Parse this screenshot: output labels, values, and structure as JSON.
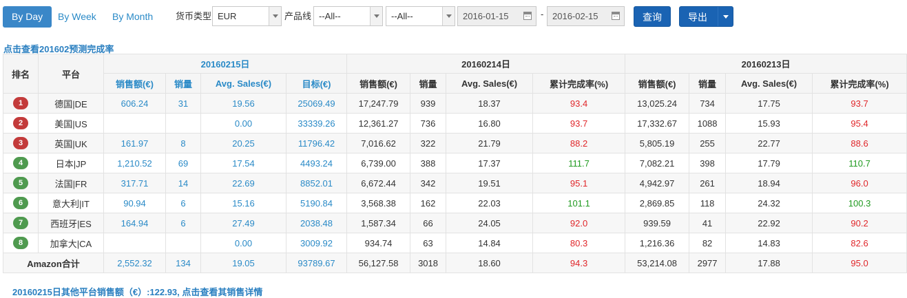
{
  "toolbar": {
    "tabs": [
      {
        "label": "By Day",
        "active": true
      },
      {
        "label": "By Week",
        "active": false
      },
      {
        "label": "By Month",
        "active": false
      }
    ],
    "currency_label": "货币类型",
    "currency_value": "EUR",
    "product_line_label": "产品线",
    "product_line_value": "--All--",
    "second_filter_value": "--All--",
    "start_date": "2016-01-15",
    "date_separator": "-",
    "end_date": "2016-02-15",
    "query_label": "查询",
    "export_label": "导出"
  },
  "forecast_link": "点击查看201602预测完成率",
  "table": {
    "rank_header": "排名",
    "platform_header": "平台",
    "groups": [
      "20160215日",
      "20160214日",
      "20160213日"
    ],
    "group1_cols": [
      "销售额(€)",
      "销量",
      "Avg. Sales(€)",
      "目标(€)"
    ],
    "group2_cols": [
      "销售额(€)",
      "销量",
      "Avg. Sales(€)",
      "累计完成率(%)"
    ],
    "group3_cols": [
      "销售额(€)",
      "销量",
      "Avg. Sales(€)",
      "累计完成率(%)"
    ],
    "rows": [
      {
        "rank": "1",
        "rank_color": "red",
        "platform": "德国|DE",
        "d1": [
          "606.24",
          "31",
          "19.56",
          "25069.49"
        ],
        "d2": [
          "17,247.79",
          "939",
          "18.37",
          "93.4"
        ],
        "d2_status": "red",
        "d3": [
          "13,025.24",
          "734",
          "17.75",
          "93.7"
        ],
        "d3_status": "red"
      },
      {
        "rank": "2",
        "rank_color": "red",
        "platform": "美国|US",
        "d1": [
          "",
          "",
          "0.00",
          "33339.26"
        ],
        "d2": [
          "12,361.27",
          "736",
          "16.80",
          "93.7"
        ],
        "d2_status": "red",
        "d3": [
          "17,332.67",
          "1088",
          "15.93",
          "95.4"
        ],
        "d3_status": "red"
      },
      {
        "rank": "3",
        "rank_color": "red",
        "platform": "英国|UK",
        "d1": [
          "161.97",
          "8",
          "20.25",
          "11796.42"
        ],
        "d2": [
          "7,016.62",
          "322",
          "21.79",
          "88.2"
        ],
        "d2_status": "red",
        "d3": [
          "5,805.19",
          "255",
          "22.77",
          "88.6"
        ],
        "d3_status": "red"
      },
      {
        "rank": "4",
        "rank_color": "green",
        "platform": "日本|JP",
        "d1": [
          "1,210.52",
          "69",
          "17.54",
          "4493.24"
        ],
        "d2": [
          "6,739.00",
          "388",
          "17.37",
          "111.7"
        ],
        "d2_status": "green",
        "d3": [
          "7,082.21",
          "398",
          "17.79",
          "110.7"
        ],
        "d3_status": "green"
      },
      {
        "rank": "5",
        "rank_color": "green",
        "platform": "法国|FR",
        "d1": [
          "317.71",
          "14",
          "22.69",
          "8852.01"
        ],
        "d2": [
          "6,672.44",
          "342",
          "19.51",
          "95.1"
        ],
        "d2_status": "red",
        "d3": [
          "4,942.97",
          "261",
          "18.94",
          "96.0"
        ],
        "d3_status": "red"
      },
      {
        "rank": "6",
        "rank_color": "green",
        "platform": "意大利|IT",
        "d1": [
          "90.94",
          "6",
          "15.16",
          "5190.84"
        ],
        "d2": [
          "3,568.38",
          "162",
          "22.03",
          "101.1"
        ],
        "d2_status": "green",
        "d3": [
          "2,869.85",
          "118",
          "24.32",
          "100.3"
        ],
        "d3_status": "green"
      },
      {
        "rank": "7",
        "rank_color": "green",
        "platform": "西班牙|ES",
        "d1": [
          "164.94",
          "6",
          "27.49",
          "2038.48"
        ],
        "d2": [
          "1,587.34",
          "66",
          "24.05",
          "92.0"
        ],
        "d2_status": "red",
        "d3": [
          "939.59",
          "41",
          "22.92",
          "90.2"
        ],
        "d3_status": "red"
      },
      {
        "rank": "8",
        "rank_color": "green",
        "platform": "加拿大|CA",
        "d1": [
          "",
          "",
          "0.00",
          "3009.92"
        ],
        "d2": [
          "934.74",
          "63",
          "14.84",
          "80.3"
        ],
        "d2_status": "red",
        "d3": [
          "1,216.36",
          "82",
          "14.83",
          "82.6"
        ],
        "d3_status": "red"
      }
    ],
    "total": {
      "label": "Amazon合计",
      "d1": [
        "2,552.32",
        "134",
        "19.05",
        "93789.67"
      ],
      "d2": [
        "56,127.58",
        "3018",
        "18.60",
        "94.3"
      ],
      "d2_status": "red",
      "d3": [
        "53,214.08",
        "2977",
        "17.88",
        "95.0"
      ],
      "d3_status": "red"
    }
  },
  "other_platforms_link": "20160215日其他平台销售额（€）:122.93, 点击查看其销售详情",
  "colors": {
    "accent": "#2a8ac7",
    "primary_button": "#1a63b3",
    "under_target": "#e0262a",
    "over_target": "#1f9a1f",
    "rank_red": "#c33b3b",
    "rank_green": "#4f9a4f"
  }
}
